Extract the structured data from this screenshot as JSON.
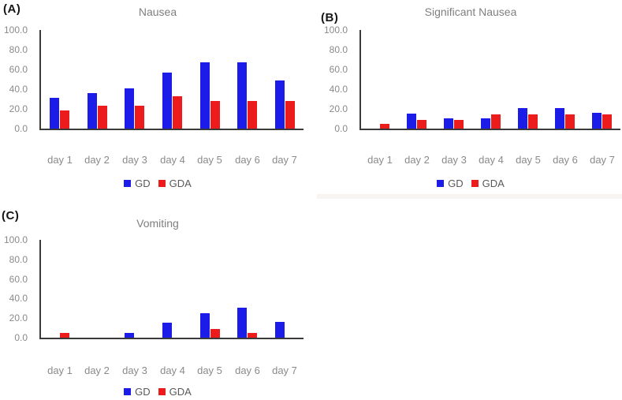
{
  "chart_data": [
    {
      "type": "bar",
      "panel_label": "(A)",
      "title": "Nausea",
      "categories": [
        "day 1",
        "day 2",
        "day 3",
        "day 4",
        "day 5",
        "day 6",
        "day 7"
      ],
      "series": [
        {
          "name": "GD",
          "color": "#1C1CE8",
          "values": [
            31,
            36,
            41,
            57,
            67,
            67,
            49
          ]
        },
        {
          "name": "GDA",
          "color": "#EC1C1C",
          "values": [
            18,
            23,
            23,
            33,
            28,
            28,
            28
          ]
        }
      ],
      "xlabel": "",
      "ylabel": "",
      "ylim": [
        0,
        100
      ],
      "yticks": [
        "100.0",
        "80.0",
        "60.0",
        "40.0",
        "20.0",
        "0.0"
      ],
      "grid": false,
      "legend_position": "bottom"
    },
    {
      "type": "bar",
      "panel_label": "(B)",
      "title": "Significant Nausea",
      "categories": [
        "day 1",
        "day 2",
        "day 3",
        "day 4",
        "day 5",
        "day 6",
        "day 7"
      ],
      "series": [
        {
          "name": "GD",
          "color": "#1C1CE8",
          "values": [
            0,
            15,
            10,
            10,
            21,
            21,
            16
          ]
        },
        {
          "name": "GDA",
          "color": "#EC1C1C",
          "values": [
            5,
            9,
            9,
            14,
            14,
            14,
            14
          ]
        }
      ],
      "xlabel": "",
      "ylabel": "",
      "ylim": [
        0,
        100
      ],
      "yticks": [
        "100.0",
        "80.0",
        "60.0",
        "40.0",
        "20.0",
        "0.0"
      ],
      "grid": false,
      "legend_position": "bottom"
    },
    {
      "type": "bar",
      "panel_label": "(C)",
      "title": "Vomiting",
      "categories": [
        "day 1",
        "day 2",
        "day 3",
        "day 4",
        "day 5",
        "day 6",
        "day 7"
      ],
      "series": [
        {
          "name": "GD",
          "color": "#1C1CE8",
          "values": [
            0,
            0,
            5,
            15,
            25,
            31,
            16
          ]
        },
        {
          "name": "GDA",
          "color": "#EC1C1C",
          "values": [
            5,
            0,
            0,
            0,
            9,
            5,
            0
          ]
        }
      ],
      "xlabel": "",
      "ylabel": "",
      "ylim": [
        0,
        100
      ],
      "yticks": [
        "100.0",
        "80.0",
        "60.0",
        "40.0",
        "20.0",
        "0.0"
      ],
      "grid": false,
      "legend_position": "bottom"
    }
  ],
  "colors": {
    "gd": "#1C1CE8",
    "gda": "#EC1C1C",
    "axis": "#3a3a3a",
    "tick_text": "#8a8a8a",
    "title_text": "#7f7f7f",
    "legend_text": "#595959"
  }
}
